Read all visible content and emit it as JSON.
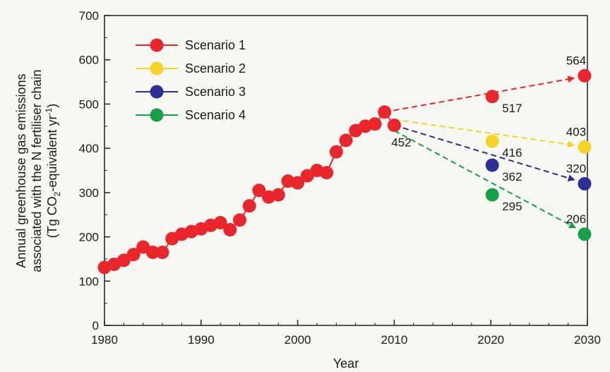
{
  "chart_data": {
    "type": "scatter",
    "xlabel": "Year",
    "ylabel": {
      "line1": "Annual greenhouse gas emissions",
      "line2": "associated with the N fertiliser chain",
      "line3_prefix": "(Tg CO",
      "line3_sub": "2",
      "line3_mid": "-equivalent yr",
      "line3_sup": "-1",
      "line3_suffix": ")"
    },
    "xlim": [
      1980,
      2030
    ],
    "ylim": [
      0,
      700
    ],
    "x_ticks": [
      1980,
      1990,
      2000,
      2010,
      2020,
      2030
    ],
    "y_ticks": [
      0,
      100,
      200,
      300,
      400,
      500,
      600,
      700
    ],
    "grid": false,
    "legend_position": "top-left",
    "historical": {
      "color": "#e8262b",
      "x": [
        1980,
        1981,
        1982,
        1983,
        1984,
        1985,
        1986,
        1987,
        1988,
        1989,
        1990,
        1991,
        1992,
        1993,
        1994,
        1995,
        1996,
        1997,
        1998,
        1999,
        2000,
        2001,
        2002,
        2003,
        2004,
        2005,
        2006,
        2007,
        2008,
        2009,
        2010
      ],
      "y": [
        131,
        138,
        147,
        160,
        177,
        165,
        165,
        196,
        206,
        212,
        218,
        226,
        232,
        216,
        238,
        270,
        305,
        290,
        295,
        326,
        322,
        338,
        350,
        345,
        392,
        418,
        440,
        450,
        455,
        482,
        452
      ]
    },
    "series": [
      {
        "name": "Scenario 1",
        "color": "#e8262b",
        "start": [
          2009,
          482
        ],
        "end": [
          2030,
          564
        ],
        "mid": [
          2020,
          517
        ],
        "end_label": "564",
        "mid_label": "517"
      },
      {
        "name": "Scenario 2",
        "color": "#f5d327",
        "start": [
          2010,
          465
        ],
        "end": [
          2030,
          403
        ],
        "mid": [
          2020,
          416
        ],
        "end_label": "403",
        "mid_label": "416"
      },
      {
        "name": "Scenario 3",
        "color": "#2c3092",
        "start": [
          2010,
          452
        ],
        "end": [
          2030,
          320
        ],
        "mid": [
          2020,
          362
        ],
        "end_label": "320",
        "mid_label": "362"
      },
      {
        "name": "Scenario 4",
        "color": "#17a04a",
        "start": [
          2010,
          440
        ],
        "end": [
          2030,
          206
        ],
        "mid": [
          2020,
          295
        ],
        "end_label": "206",
        "mid_label": "295"
      }
    ],
    "annotations": [
      {
        "text": "452",
        "x": 2010,
        "y": 452
      }
    ]
  }
}
